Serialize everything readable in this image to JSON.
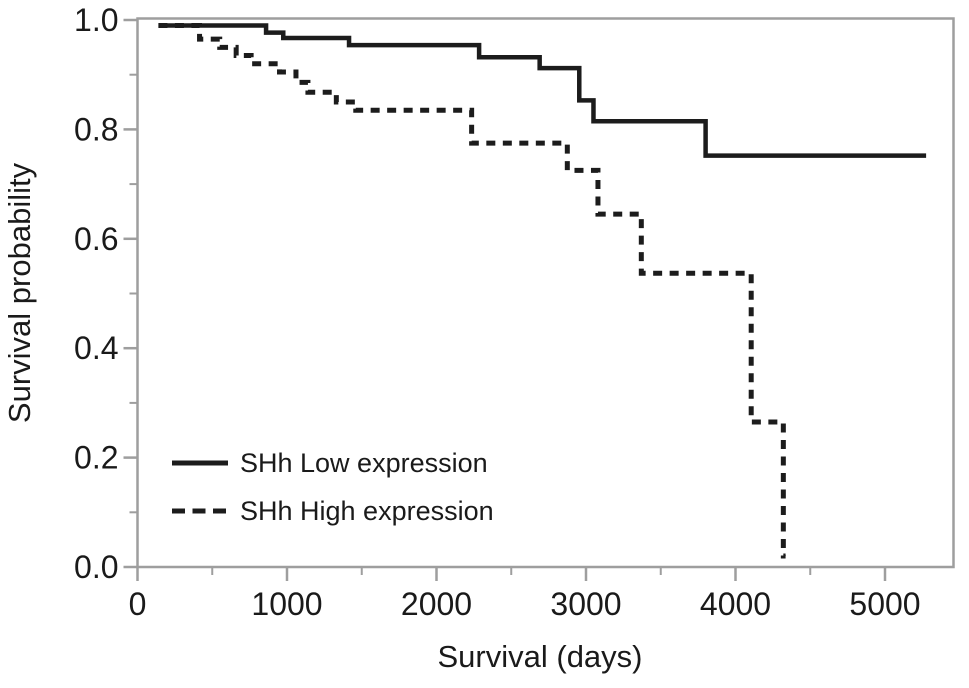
{
  "chart_data": {
    "type": "line",
    "subtype": "kaplan-meier-step",
    "title": "",
    "xlabel": "Survival (days)",
    "ylabel": "Survival probability",
    "xlim": [
      0,
      5470
    ],
    "ylim": [
      0.0,
      1.0
    ],
    "grid": false,
    "legend_position": "lower-left-inside",
    "x_major_ticks": [
      {
        "value": 0,
        "label": "0"
      },
      {
        "value": 1000,
        "label": "1000"
      },
      {
        "value": 2000,
        "label": "2000"
      },
      {
        "value": 3000,
        "label": "3000"
      },
      {
        "value": 4000,
        "label": "4000"
      },
      {
        "value": 5000,
        "label": "5000"
      }
    ],
    "x_minor_ticks": [
      500,
      1500,
      2500,
      3500,
      4500
    ],
    "y_major_ticks": [
      {
        "value": 0.0,
        "label": "0.0"
      },
      {
        "value": 0.2,
        "label": "0.2"
      },
      {
        "value": 0.4,
        "label": "0.4"
      },
      {
        "value": 0.6,
        "label": "0.6"
      },
      {
        "value": 0.8,
        "label": "0.8"
      },
      {
        "value": 1.0,
        "label": "1.0"
      }
    ],
    "y_minor_ticks": [
      0.1,
      0.3,
      0.5,
      0.7,
      0.9
    ],
    "series": [
      {
        "name": "SHh Low expression",
        "line_style": "solid",
        "start": [
          140,
          0.99
        ],
        "steps": [
          [
            860,
            0.977
          ],
          [
            975,
            0.967
          ],
          [
            1415,
            0.954
          ],
          [
            2285,
            0.932
          ],
          [
            2690,
            0.912
          ],
          [
            2955,
            0.853
          ],
          [
            3050,
            0.815
          ],
          [
            3800,
            0.752
          ]
        ],
        "end_day": 5275
      },
      {
        "name": "SHh High expression",
        "line_style": "dashed",
        "start": [
          140,
          0.99
        ],
        "steps": [
          [
            415,
            0.965
          ],
          [
            550,
            0.95
          ],
          [
            660,
            0.935
          ],
          [
            760,
            0.92
          ],
          [
            950,
            0.905
          ],
          [
            1060,
            0.886
          ],
          [
            1140,
            0.868
          ],
          [
            1330,
            0.85
          ],
          [
            1460,
            0.835
          ],
          [
            2235,
            0.775
          ],
          [
            2875,
            0.725
          ],
          [
            3080,
            0.645
          ],
          [
            3370,
            0.537
          ],
          [
            4105,
            0.265
          ],
          [
            4320,
            0.02
          ]
        ],
        "end_day": 4335
      }
    ]
  },
  "colors": {
    "curve": "#1c1c1c",
    "axis": "#9e9e9e",
    "text": "#1a1a1a",
    "background": "#ffffff"
  }
}
